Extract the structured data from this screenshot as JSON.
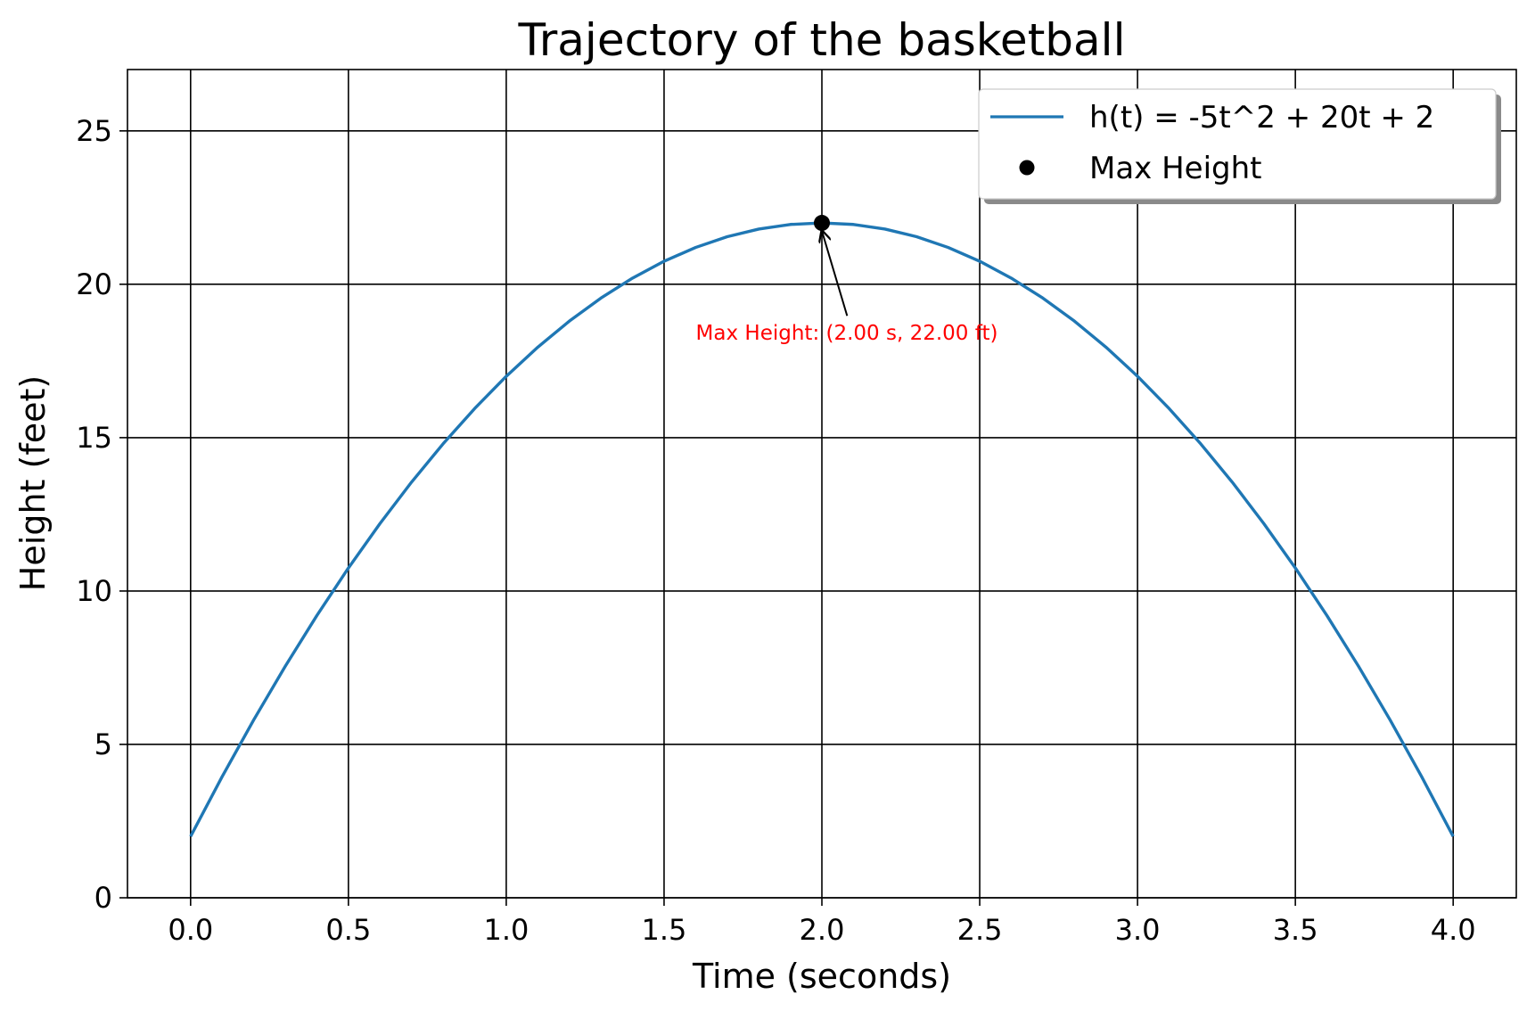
{
  "chart_data": {
    "type": "line",
    "title": "Trajectory of the basketball",
    "xlabel": "Time (seconds)",
    "ylabel": "Height (feet)",
    "xlim": [
      -0.2,
      4.2
    ],
    "ylim": [
      0,
      27
    ],
    "grid": true,
    "x_ticks": [
      "0.0",
      "0.5",
      "1.0",
      "1.5",
      "2.0",
      "2.5",
      "3.0",
      "3.5",
      "4.0"
    ],
    "x_tick_values": [
      0,
      0.5,
      1.0,
      1.5,
      2.0,
      2.5,
      3.0,
      3.5,
      4.0
    ],
    "y_ticks": [
      "0",
      "5",
      "10",
      "15",
      "20",
      "25"
    ],
    "y_tick_values": [
      0,
      5,
      10,
      15,
      20,
      25
    ],
    "series": [
      {
        "name": "h(t) = -5t^2 + 20t + 2",
        "color": "#1f77b4",
        "x": [
          0,
          0.1,
          0.2,
          0.3,
          0.4,
          0.5,
          0.6,
          0.7,
          0.8,
          0.9,
          1.0,
          1.1,
          1.2,
          1.3,
          1.4,
          1.5,
          1.6,
          1.7,
          1.8,
          1.9,
          2.0,
          2.1,
          2.2,
          2.3,
          2.4,
          2.5,
          2.6,
          2.7,
          2.8,
          2.9,
          3.0,
          3.1,
          3.2,
          3.3,
          3.4,
          3.5,
          3.6,
          3.7,
          3.8,
          3.9,
          4.0
        ],
        "y": [
          2.0,
          3.95,
          5.8,
          7.55,
          9.2,
          10.75,
          12.2,
          13.55,
          14.8,
          15.95,
          17.0,
          17.95,
          18.8,
          19.55,
          20.2,
          20.75,
          21.2,
          21.55,
          21.8,
          21.95,
          22.0,
          21.95,
          21.8,
          21.55,
          21.2,
          20.75,
          20.2,
          19.55,
          18.8,
          17.95,
          17.0,
          15.95,
          14.8,
          13.55,
          12.2,
          10.75,
          9.2,
          7.55,
          5.8,
          3.95,
          2.0
        ]
      },
      {
        "name": "Max Height",
        "color": "#000000",
        "marker": "dot",
        "x": [
          2.0
        ],
        "y": [
          22.0
        ]
      }
    ],
    "annotation": {
      "text": "Max Height: (2.00 s, 22.00 ft)",
      "color": "#ff0000",
      "point": [
        2.0,
        22.0
      ],
      "text_position": [
        2.08,
        18.1
      ]
    },
    "legend": {
      "placement": "upper right",
      "shadow": true
    }
  }
}
